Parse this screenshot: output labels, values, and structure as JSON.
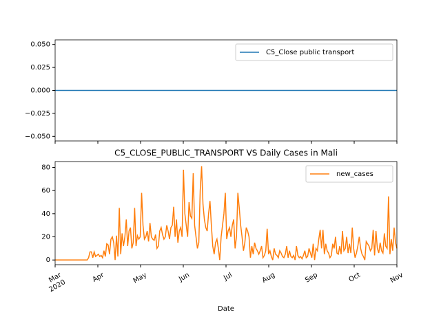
{
  "chart_data": [
    {
      "type": "line",
      "ylim": [
        -0.055,
        0.055
      ],
      "yticks": [
        {
          "value": -0.05,
          "label": "−0.050"
        },
        {
          "value": -0.025,
          "label": "−0.025"
        },
        {
          "value": 0,
          "label": "0.000"
        },
        {
          "value": 0.025,
          "label": "0.025"
        },
        {
          "value": 0.05,
          "label": "0.050"
        }
      ],
      "legend": "upper right",
      "series": [
        {
          "name": "C5_Close public transport",
          "color": "#1f77b4",
          "values": [
            0,
            0
          ]
        }
      ]
    },
    {
      "type": "line",
      "title": "C5_CLOSE_PUBLIC_TRANSPORT VS Daily Cases in Mali",
      "x_label": "Date",
      "xticks": [
        "Mar\n2020",
        "Apr",
        "May",
        "Jun",
        "Jul",
        "Aug",
        "Sep",
        "Oct",
        "Nov"
      ],
      "ylim": [
        -4.05,
        85.05
      ],
      "yticks": [
        0,
        20,
        40,
        60,
        80
      ],
      "legend": "upper right",
      "series": [
        {
          "name": "new_cases",
          "color": "#ff7f0e",
          "values": [
            0,
            0,
            0,
            0,
            0,
            0,
            0,
            0,
            0,
            0,
            0,
            0,
            0,
            0,
            0,
            0,
            0,
            0,
            0,
            0,
            0,
            0,
            0,
            0,
            2,
            7,
            7,
            2,
            7,
            3,
            4,
            5,
            3,
            4,
            2,
            8,
            3,
            14,
            13,
            5,
            18,
            20,
            15,
            0,
            21,
            3,
            45,
            5,
            23,
            12,
            20,
            35,
            12,
            25,
            28,
            10,
            15,
            45,
            12,
            21,
            18,
            20,
            58,
            30,
            18,
            20,
            25,
            16,
            32,
            20,
            18,
            17,
            22,
            10,
            12,
            25,
            28,
            22,
            18,
            20,
            30,
            25,
            18,
            28,
            30,
            46,
            20,
            35,
            15,
            25,
            28,
            20,
            78,
            40,
            30,
            20,
            50,
            38,
            36,
            75,
            30,
            20,
            10,
            15,
            60,
            81,
            48,
            35,
            28,
            25,
            40,
            51,
            30,
            12,
            5,
            15,
            18,
            10,
            0,
            20,
            30,
            40,
            58,
            18,
            25,
            28,
            20,
            30,
            35,
            10,
            20,
            58,
            45,
            30,
            20,
            8,
            15,
            28,
            25,
            20,
            2,
            12,
            5,
            15,
            10,
            8,
            5,
            8,
            12,
            2,
            4,
            8,
            27,
            5,
            8,
            3,
            0,
            10,
            5,
            4,
            2,
            8,
            6,
            3,
            2,
            5,
            12,
            2,
            8,
            3,
            2,
            4,
            0,
            12,
            4,
            2,
            3,
            1,
            4,
            8,
            2,
            3,
            10,
            6,
            2,
            14,
            0,
            10,
            8,
            18,
            26,
            10,
            26,
            5,
            14,
            8,
            6,
            2,
            4,
            14,
            10,
            20,
            6,
            5,
            12,
            5,
            25,
            8,
            10,
            20,
            6,
            14,
            6,
            28,
            10,
            2,
            6,
            12,
            20,
            10,
            5,
            3,
            0,
            16,
            14,
            12,
            8,
            10,
            26,
            4,
            25,
            10,
            6,
            15,
            8,
            6,
            23,
            12,
            10,
            55,
            5,
            18,
            8,
            28,
            15,
            10
          ]
        }
      ]
    }
  ]
}
